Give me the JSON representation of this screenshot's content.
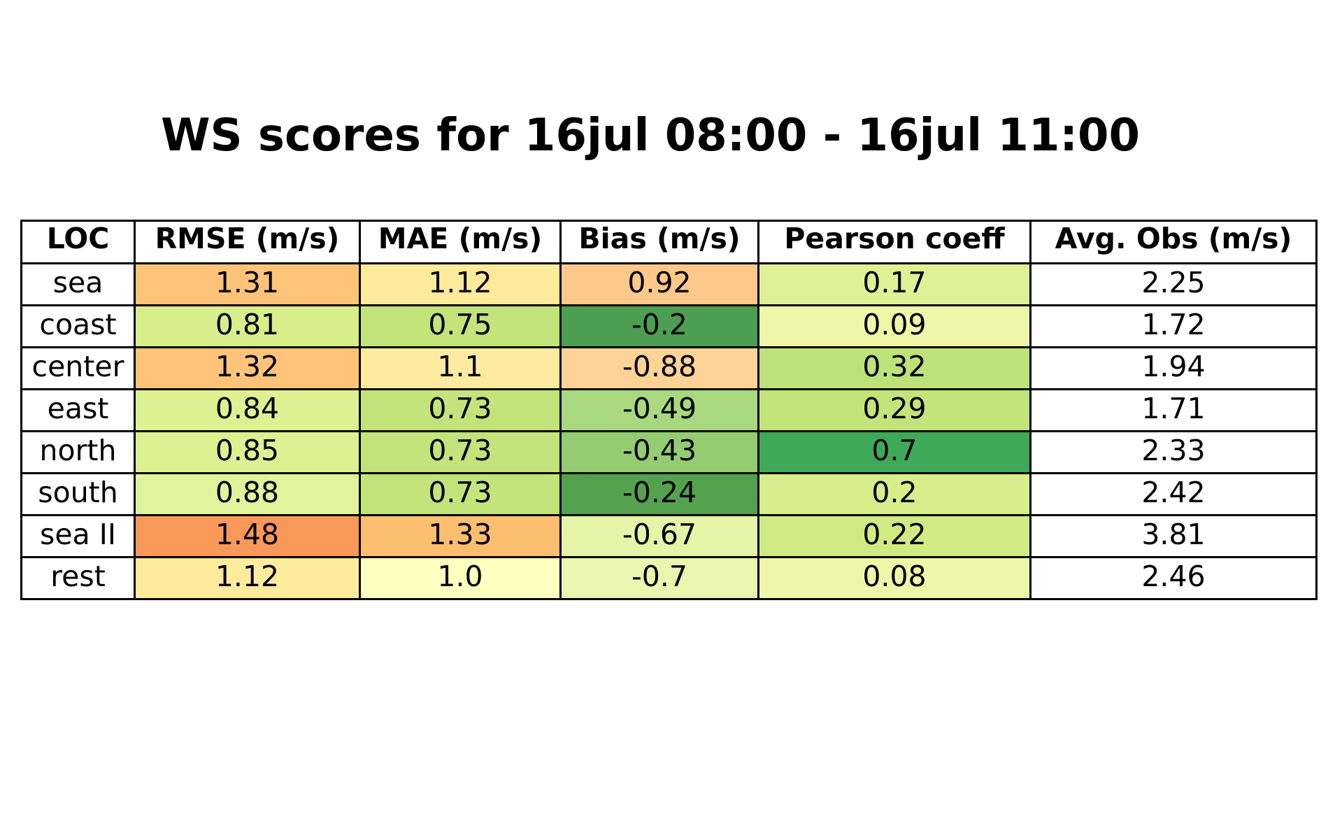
{
  "chart_data": {
    "type": "table",
    "title": "WS scores for 16jul 08:00 - 16jul 11:00",
    "columns": [
      "LOC",
      "RMSE (m/s)",
      "MAE (m/s)",
      "Bias (m/s)",
      "Pearson coeff",
      "Avg. Obs (m/s)"
    ],
    "rows": [
      {
        "loc": "sea",
        "rmse": "1.31",
        "mae": "1.12",
        "bias": "0.92",
        "pearson": "0.17",
        "avg_obs": "2.25"
      },
      {
        "loc": "coast",
        "rmse": "0.81",
        "mae": "0.75",
        "bias": "-0.2",
        "pearson": "0.09",
        "avg_obs": "1.72"
      },
      {
        "loc": "center",
        "rmse": "1.32",
        "mae": "1.1",
        "bias": "-0.88",
        "pearson": "0.32",
        "avg_obs": "1.94"
      },
      {
        "loc": "east",
        "rmse": "0.84",
        "mae": "0.73",
        "bias": "-0.49",
        "pearson": "0.29",
        "avg_obs": "1.71"
      },
      {
        "loc": "north",
        "rmse": "0.85",
        "mae": "0.73",
        "bias": "-0.43",
        "pearson": "0.7",
        "avg_obs": "2.33"
      },
      {
        "loc": "south",
        "rmse": "0.88",
        "mae": "0.73",
        "bias": "-0.24",
        "pearson": "0.2",
        "avg_obs": "2.42"
      },
      {
        "loc": "sea II",
        "rmse": "1.48",
        "mae": "1.33",
        "bias": "-0.67",
        "pearson": "0.22",
        "avg_obs": "3.81"
      },
      {
        "loc": "rest",
        "rmse": "1.12",
        "mae": "1.0",
        "bias": "-0.7",
        "pearson": "0.08",
        "avg_obs": "2.46"
      }
    ],
    "cell_colors": [
      {
        "rmse": "#fdc479",
        "mae": "#feea9b",
        "bias": "#fdc98a",
        "pearson": "#dff194"
      },
      {
        "rmse": "#d7ee8a",
        "mae": "#c2e47b",
        "bias": "#4c9e50",
        "pearson": "#eef7a8"
      },
      {
        "rmse": "#fdc479",
        "mae": "#feeba0",
        "bias": "#fdd496",
        "pearson": "#bde27a"
      },
      {
        "rmse": "#ddf192",
        "mae": "#c2e47b",
        "bias": "#a8d981",
        "pearson": "#c2e47b"
      },
      {
        "rmse": "#ddf192",
        "mae": "#c2e47b",
        "bias": "#94cd71",
        "pearson": "#3eaa58"
      },
      {
        "rmse": "#e2f39c",
        "mae": "#c2e47b",
        "bias": "#54a24f",
        "pearson": "#d7ee8a"
      },
      {
        "rmse": "#f99858",
        "mae": "#fdbe70",
        "bias": "#e6f4a8",
        "pearson": "#d1eb84"
      },
      {
        "rmse": "#feeb9c",
        "mae": "#ffffc0",
        "bias": "#eaf6b0",
        "pearson": "#eef7a8"
      }
    ],
    "avg_obs_color": "#ffffff"
  }
}
